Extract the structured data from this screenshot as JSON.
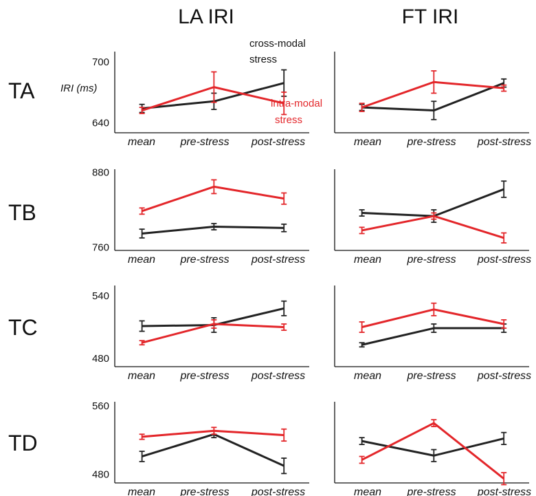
{
  "chart_data": {
    "type": "line",
    "column_titles": [
      "LA IRI",
      "FT IRI"
    ],
    "row_labels": [
      "TA",
      "TB",
      "TC",
      "TD"
    ],
    "categories": [
      "mean",
      "pre-stress",
      "post-stress"
    ],
    "ylabel": "IRI (ms)",
    "colors": {
      "cross-modal": "#222222",
      "intra-modal": "#e3262a"
    },
    "annotations": {
      "cross_modal": [
        "cross-modal",
        "stress"
      ],
      "intra_modal": [
        "intra-modal",
        "stress"
      ]
    },
    "panels": [
      {
        "row": "TA",
        "column": "LA IRI",
        "ylim": [
          630,
          710
        ],
        "ticks": [
          "700",
          "640"
        ],
        "show_ylabel": true,
        "series": [
          {
            "name": "cross-modal stress",
            "values": [
              654,
              661,
              679
            ],
            "errors": [
              4,
              8,
              13
            ]
          },
          {
            "name": "intra-modal stress",
            "values": [
              652,
              675,
              659
            ],
            "errors": [
              3,
              15,
              11
            ]
          }
        ]
      },
      {
        "row": "TA",
        "column": "FT IRI",
        "ylim": [
          630,
          710
        ],
        "ticks": [],
        "series": [
          {
            "name": "cross-modal stress",
            "values": [
              655,
              652,
              679
            ],
            "errors": [
              3,
              9,
              4
            ]
          },
          {
            "name": "intra-modal stress",
            "values": [
              655,
              680,
              674
            ],
            "errors": [
              4,
              11,
              3
            ]
          }
        ]
      },
      {
        "row": "TB",
        "column": "LA IRI",
        "ylim": [
          755,
          885
        ],
        "ticks": [
          "880",
          "760"
        ],
        "series": [
          {
            "name": "cross-modal stress",
            "values": [
              782,
              793,
              791
            ],
            "errors": [
              7,
              5,
              6
            ]
          },
          {
            "name": "intra-modal stress",
            "values": [
              818,
              857,
              838
            ],
            "errors": [
              5,
              11,
              9
            ]
          }
        ]
      },
      {
        "row": "TB",
        "column": "FT IRI",
        "ylim": [
          755,
          885
        ],
        "ticks": [],
        "series": [
          {
            "name": "cross-modal stress",
            "values": [
              815,
              810,
              853
            ],
            "errors": [
              5,
              10,
              13
            ]
          },
          {
            "name": "intra-modal stress",
            "values": [
              787,
              810,
              775
            ],
            "errors": [
              5,
              5,
              8
            ]
          }
        ]
      },
      {
        "row": "TC",
        "column": "LA IRI",
        "ylim": [
          472,
          550
        ],
        "ticks": [
          "540",
          "480"
        ],
        "series": [
          {
            "name": "cross-modal stress",
            "values": [
              511,
              512,
              528
            ],
            "errors": [
              5,
              7,
              7
            ]
          },
          {
            "name": "intra-modal stress",
            "values": [
              495,
              513,
              510
            ],
            "errors": [
              2,
              4,
              3
            ]
          }
        ]
      },
      {
        "row": "TC",
        "column": "FT IRI",
        "ylim": [
          472,
          550
        ],
        "ticks": [],
        "series": [
          {
            "name": "cross-modal stress",
            "values": [
              493,
              509,
              509
            ],
            "errors": [
              2,
              4,
              4
            ]
          },
          {
            "name": "intra-modal stress",
            "values": [
              510,
              527,
              513
            ],
            "errors": [
              5,
              6,
              4
            ]
          }
        ]
      },
      {
        "row": "TD",
        "column": "LA IRI",
        "ylim": [
          470,
          565
        ],
        "ticks": [
          "560",
          "480"
        ],
        "series": [
          {
            "name": "cross-modal stress",
            "values": [
              501,
              527,
              490
            ],
            "errors": [
              6,
              4,
              9
            ]
          },
          {
            "name": "intra-modal stress",
            "values": [
              524,
              531,
              526
            ],
            "errors": [
              3,
              4,
              7
            ]
          }
        ]
      },
      {
        "row": "TD",
        "column": "FT IRI",
        "ylim": [
          470,
          565
        ],
        "ticks": [],
        "series": [
          {
            "name": "cross-modal stress",
            "values": [
              519,
              502,
              522
            ],
            "errors": [
              4,
              7,
              7
            ]
          },
          {
            "name": "intra-modal stress",
            "values": [
              497,
              540,
              475
            ],
            "errors": [
              4,
              4,
              7
            ]
          }
        ]
      }
    ]
  }
}
